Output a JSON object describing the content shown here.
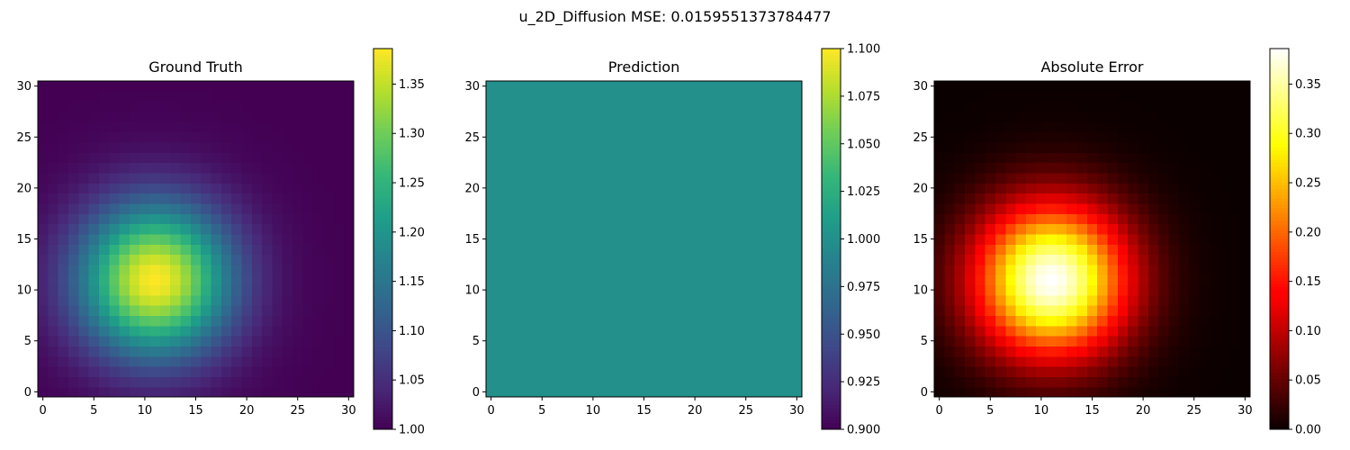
{
  "suptitle": "u_2D_Diffusion MSE: 0.0159551373784477",
  "chart_data": [
    {
      "type": "heatmap",
      "title": "Ground Truth",
      "colormap": "viridis",
      "grid_size": 31,
      "field": {
        "kind": "gaussian",
        "base": 1.0,
        "amplitude": 0.386,
        "center_x": 11,
        "center_y": 11,
        "sigma": 5.2
      },
      "xlim": [
        -0.5,
        30.5
      ],
      "ylim": [
        -0.5,
        30.5
      ],
      "x_ticks": [
        0,
        5,
        10,
        15,
        20,
        25,
        30
      ],
      "y_ticks": [
        0,
        5,
        10,
        15,
        20,
        25,
        30
      ],
      "colorbar": {
        "vmin": 1.0,
        "vmax": 1.386,
        "ticks": [
          "1.00",
          "1.05",
          "1.10",
          "1.15",
          "1.20",
          "1.25",
          "1.30",
          "1.35"
        ]
      }
    },
    {
      "type": "heatmap",
      "title": "Prediction",
      "colormap": "viridis",
      "grid_size": 31,
      "field": {
        "kind": "constant",
        "value": 1.0
      },
      "xlim": [
        -0.5,
        30.5
      ],
      "ylim": [
        -0.5,
        30.5
      ],
      "x_ticks": [
        0,
        5,
        10,
        15,
        20,
        25,
        30
      ],
      "y_ticks": [
        0,
        5,
        10,
        15,
        20,
        25,
        30
      ],
      "colorbar": {
        "vmin": 0.9,
        "vmax": 1.1,
        "ticks": [
          "0.900",
          "0.925",
          "0.950",
          "0.975",
          "1.000",
          "1.025",
          "1.050",
          "1.075",
          "1.100"
        ]
      }
    },
    {
      "type": "heatmap",
      "title": "Absolute Error",
      "colormap": "hot",
      "grid_size": 31,
      "field": {
        "kind": "gaussian",
        "base": 0.0,
        "amplitude": 0.386,
        "center_x": 11,
        "center_y": 11,
        "sigma": 5.2
      },
      "xlim": [
        -0.5,
        30.5
      ],
      "ylim": [
        -0.5,
        30.5
      ],
      "x_ticks": [
        0,
        5,
        10,
        15,
        20,
        25,
        30
      ],
      "y_ticks": [
        0,
        5,
        10,
        15,
        20,
        25,
        30
      ],
      "colorbar": {
        "vmin": 0.0,
        "vmax": 0.386,
        "ticks": [
          "0.00",
          "0.05",
          "0.10",
          "0.15",
          "0.20",
          "0.25",
          "0.30",
          "0.35"
        ]
      }
    }
  ]
}
